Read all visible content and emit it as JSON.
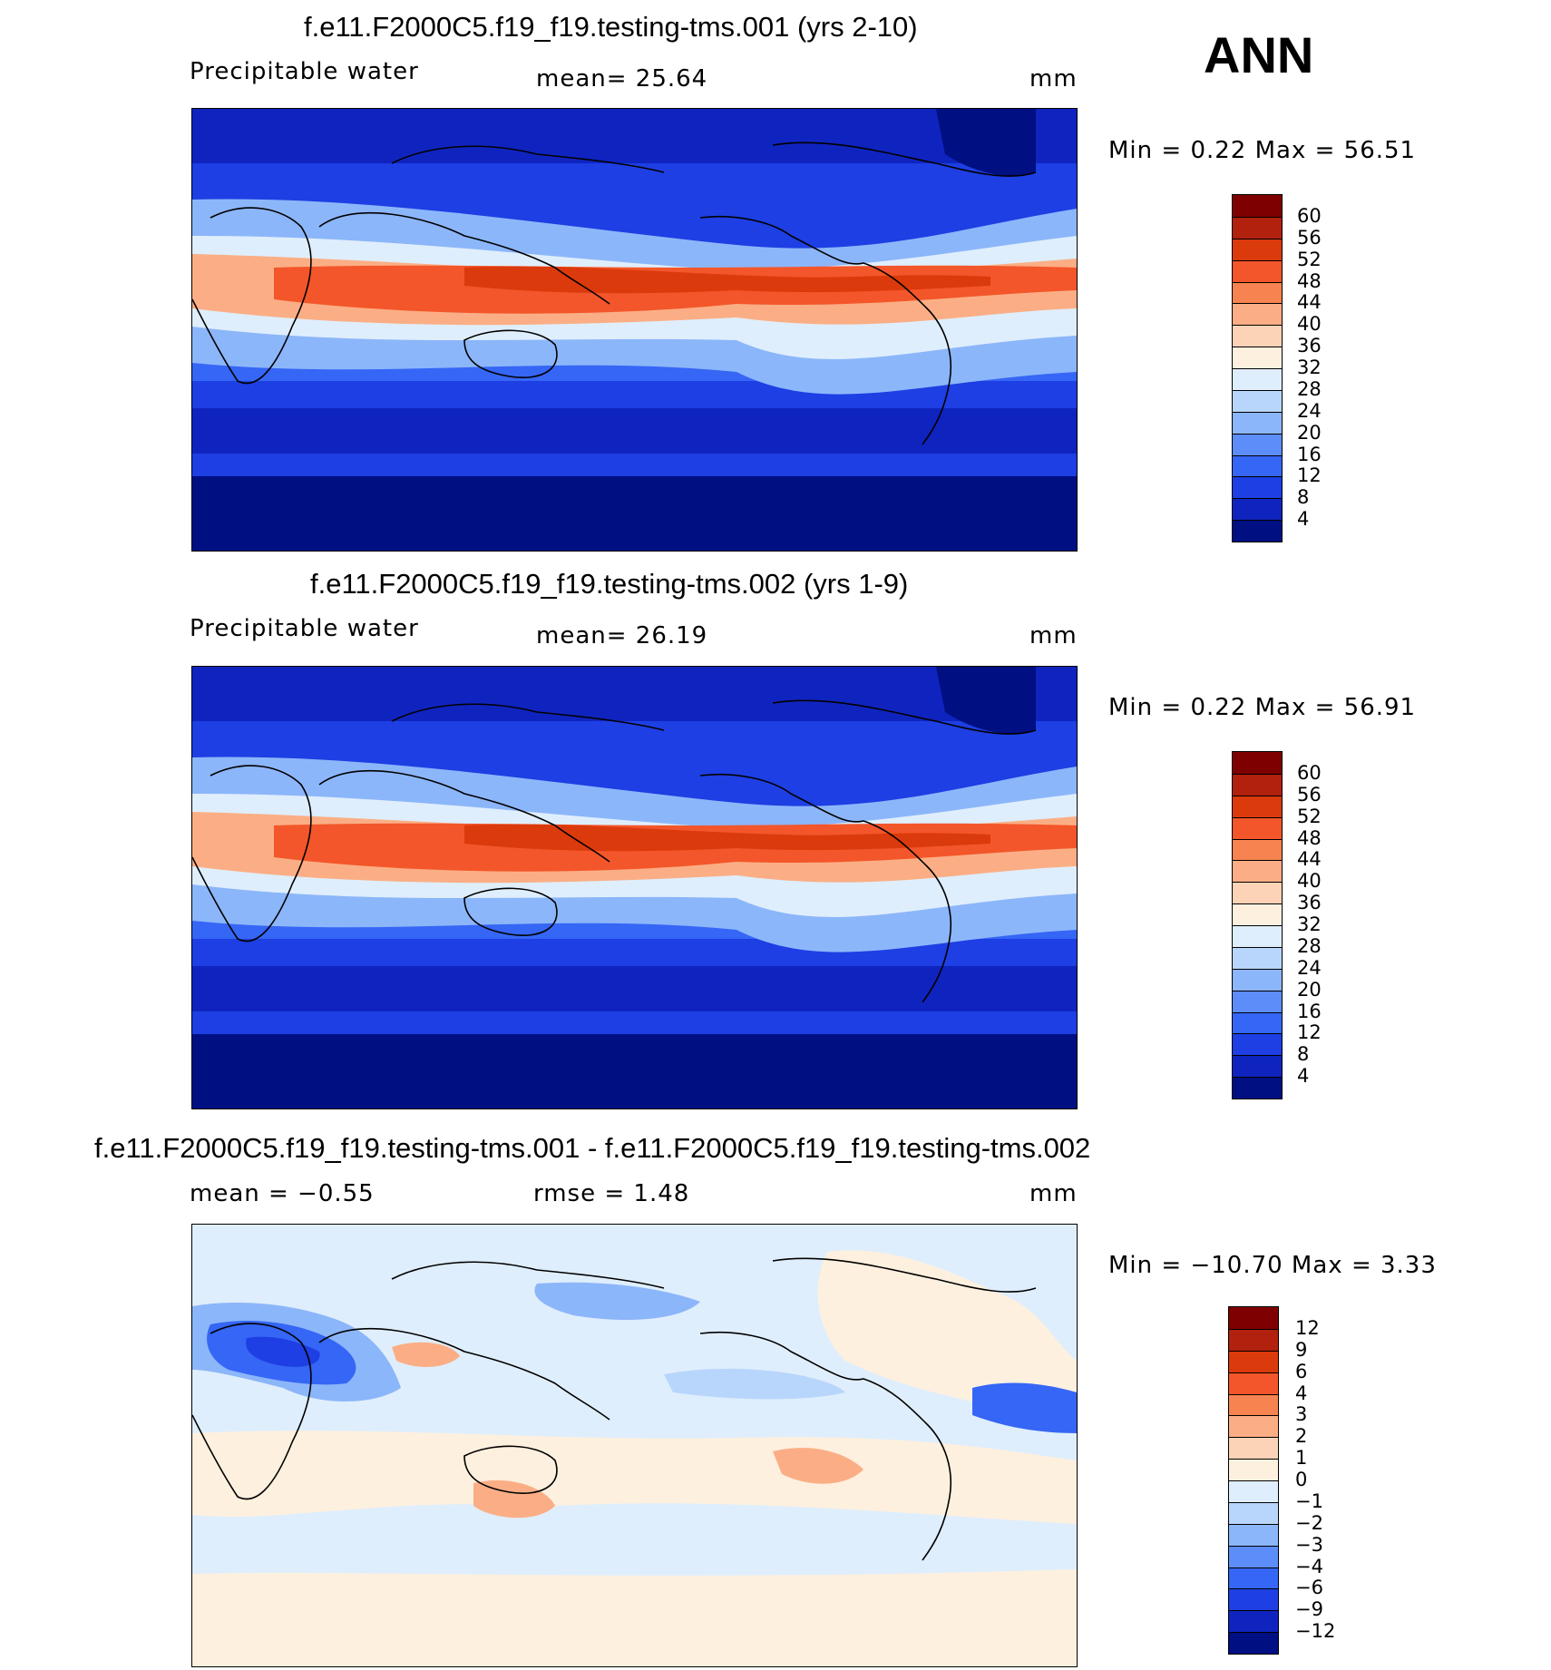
{
  "season": "ANN",
  "panels": [
    {
      "title": "f.e11.F2000C5.f19_f19.testing-tms.001 (yrs 2-10)",
      "left": "Precipitable water",
      "center": "mean=   25.64",
      "units": "mm",
      "minmax": "Min  =     0.22  Max  =    56.51",
      "colorbar": {
        "colors": [
          "#7f0000",
          "#b2200e",
          "#db3a0c",
          "#f3562a",
          "#f78450",
          "#fbae85",
          "#fdd3b8",
          "#fef0df",
          "#dfeefc",
          "#b8d6fb",
          "#8cb6fa",
          "#5d8df8",
          "#3566f5",
          "#1d3fe3",
          "#0f24bf",
          "#000f82"
        ],
        "labels": [
          "60",
          "56",
          "52",
          "48",
          "44",
          "40",
          "36",
          "32",
          "28",
          "24",
          "20",
          "16",
          "12",
          "8",
          "4"
        ]
      }
    },
    {
      "title": "f.e11.F2000C5.f19_f19.testing-tms.002 (yrs 1-9)",
      "left": "Precipitable water",
      "center": "mean=   26.19",
      "units": "mm",
      "minmax": "Min  =     0.22  Max  =    56.91",
      "colorbar": {
        "colors": [
          "#7f0000",
          "#b2200e",
          "#db3a0c",
          "#f3562a",
          "#f78450",
          "#fbae85",
          "#fdd3b8",
          "#fef0df",
          "#dfeefc",
          "#b8d6fb",
          "#8cb6fa",
          "#5d8df8",
          "#3566f5",
          "#1d3fe3",
          "#0f24bf",
          "#000f82"
        ],
        "labels": [
          "60",
          "56",
          "52",
          "48",
          "44",
          "40",
          "36",
          "32",
          "28",
          "24",
          "20",
          "16",
          "12",
          "8",
          "4"
        ]
      }
    },
    {
      "title": "f.e11.F2000C5.f19_f19.testing-tms.001 - f.e11.F2000C5.f19_f19.testing-tms.002",
      "left": "mean  =    −0.55",
      "center": "rmse  =     1.48",
      "units": "mm",
      "minmax": "Min  = −10.70  Max  =      3.33",
      "colorbar": {
        "colors": [
          "#7f0000",
          "#b2200e",
          "#db3a0c",
          "#f3562a",
          "#f78450",
          "#fbae85",
          "#fdd3b8",
          "#fef0df",
          "#dfeefc",
          "#b8d6fb",
          "#8cb6fa",
          "#5d8df8",
          "#3566f5",
          "#1d3fe3",
          "#0f24bf",
          "#000f82"
        ],
        "labels": [
          "12",
          "9",
          "6",
          "4",
          "3",
          "2",
          "1",
          "0",
          "−1",
          "−2",
          "−3",
          "−4",
          "−6",
          "−9",
          "−12"
        ]
      }
    }
  ]
}
